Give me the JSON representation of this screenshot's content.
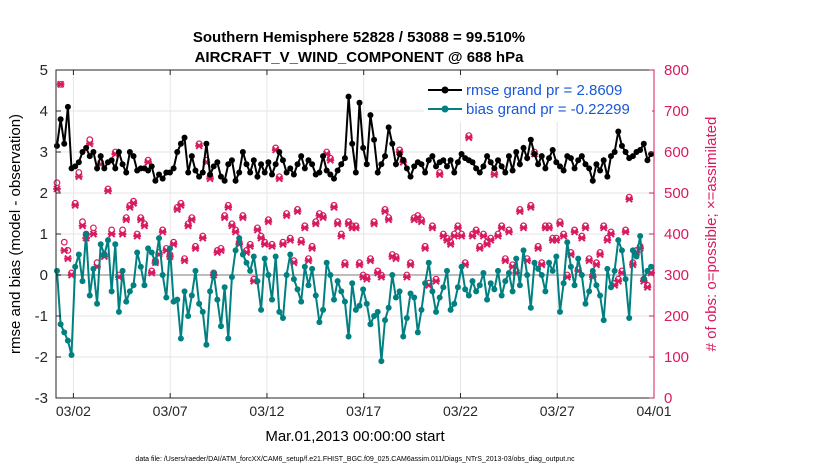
{
  "chart_data": {
    "type": "line",
    "title": "Southern Hemisphere 52828 / 53088 = 99.510%",
    "subtitle": "AIRCRAFT_V_WIND_COMPONENT @ 688 hPa",
    "xlabel": "Mar.01,2013 00:00:00 start",
    "ylabel": "rmse and bias (model - observation)",
    "y2label": "# of obs: o=possible; ×=assimilated",
    "footer": "data file: /Users/raeder/DAI/ATM_forcXX/CAM6_setup/f.e21.FHIST_BGC.f09_025.CAM6assim.011/Diags_NTrS_2013-03/obs_diag_output.nc",
    "xlim": [
      0,
      31
    ],
    "ylim": [
      -3,
      5
    ],
    "y2lim": [
      0,
      800
    ],
    "x_ticks": [
      {
        "x": 1,
        "label": "03/02"
      },
      {
        "x": 6,
        "label": "03/07"
      },
      {
        "x": 11,
        "label": "03/12"
      },
      {
        "x": 16,
        "label": "03/17"
      },
      {
        "x": 21,
        "label": "03/22"
      },
      {
        "x": 26,
        "label": "03/27"
      },
      {
        "x": 31,
        "label": "04/01"
      }
    ],
    "y_ticks": [
      "-3",
      "-2",
      "-1",
      "0",
      "1",
      "2",
      "3",
      "4",
      "5"
    ],
    "y2_ticks": [
      "0",
      "100",
      "200",
      "300",
      "400",
      "500",
      "600",
      "700",
      "800"
    ],
    "colors": {
      "rmse": "#000000",
      "bias": "#008080",
      "obs": "#d81b60",
      "zero": "#bdbdbd"
    },
    "series": [
      {
        "name": "rmse grand pr = 2.8609",
        "key": "rmse",
        "values": [
          3.15,
          3.8,
          3.2,
          4.1,
          2.6,
          2.65,
          2.75,
          3.0,
          3.1,
          2.9,
          3.0,
          2.6,
          2.9,
          2.6,
          2.75,
          2.8,
          2.6,
          3.0,
          2.7,
          2.5,
          3.0,
          2.9,
          2.55,
          2.6,
          2.6,
          2.55,
          2.65,
          2.3,
          2.45,
          2.35,
          2.5,
          2.5,
          2.6,
          3.0,
          3.2,
          3.35,
          2.5,
          2.9,
          2.55,
          2.4,
          2.5,
          3.2,
          2.45,
          2.65,
          2.75,
          2.4,
          2.3,
          2.7,
          2.8,
          2.3,
          2.5,
          3.0,
          2.7,
          2.5,
          2.8,
          2.4,
          2.7,
          2.5,
          2.75,
          2.45,
          2.7,
          3.0,
          2.8,
          2.5,
          2.6,
          2.45,
          2.7,
          2.9,
          2.6,
          2.8,
          2.7,
          2.45,
          2.5,
          2.9,
          2.55,
          2.45,
          2.35,
          2.55,
          2.7,
          2.85,
          4.35,
          3.2,
          2.5,
          4.2,
          3.1,
          2.7,
          3.9,
          3.3,
          2.5,
          2.7,
          2.9,
          3.6,
          3.2,
          2.7,
          2.95,
          2.8,
          2.6,
          2.4,
          2.65,
          2.75,
          2.7,
          2.5,
          2.8,
          2.9,
          2.65,
          2.75,
          2.8,
          2.65,
          2.8,
          2.5,
          2.75,
          2.95,
          2.85,
          2.8,
          2.75,
          2.6,
          2.5,
          2.65,
          2.9,
          2.75,
          2.6,
          2.8,
          2.65,
          2.5,
          2.9,
          2.55,
          3.0,
          2.7,
          3.1,
          2.85,
          3.3,
          2.95,
          2.7,
          2.9,
          2.6,
          2.85,
          3.05,
          2.75,
          2.65,
          2.55,
          2.9,
          2.85,
          2.6,
          2.8,
          2.9,
          2.7,
          2.6,
          2.3,
          2.7,
          2.55,
          2.8,
          2.4,
          2.9,
          3.0,
          3.5,
          3.15,
          3.0,
          2.85,
          2.9,
          3.0,
          3.05,
          3.2,
          2.8,
          2.95
        ]
      },
      {
        "name": "bias grand pr = -0.22299",
        "key": "bias",
        "values": [
          0.1,
          -1.2,
          -1.4,
          -1.6,
          -1.95,
          0.2,
          0.5,
          -0.15,
          1.0,
          -0.5,
          0.15,
          -0.7,
          0.75,
          0.5,
          0.85,
          -0.4,
          0.75,
          -0.9,
          0.1,
          -0.65,
          -0.4,
          -0.25,
          0.55,
          0.2,
          -0.25,
          0.65,
          0.55,
          0.3,
          0.9,
          0.0,
          -0.55,
          0.65,
          -0.65,
          -0.6,
          -1.55,
          -0.4,
          -1.0,
          -0.5,
          0.1,
          -0.7,
          -0.9,
          -1.7,
          -0.4,
          0.05,
          -0.6,
          -1.25,
          -0.3,
          -1.55,
          -0.05,
          0.6,
          0.9,
          0.5,
          0.3,
          0.1,
          0.45,
          -0.15,
          -0.85,
          0.4,
          0.0,
          -0.6,
          0.45,
          -0.9,
          -1.05,
          0.0,
          0.5,
          -0.1,
          -0.35,
          -0.65,
          0.2,
          -0.25,
          0.15,
          -0.5,
          -1.15,
          -0.85,
          0.3,
          0.0,
          -0.6,
          -0.15,
          -0.4,
          -0.65,
          -1.5,
          -0.2,
          -0.85,
          -0.75,
          -0.35,
          -0.7,
          -1.2,
          -1.0,
          -0.9,
          -2.1,
          -1.1,
          -0.8,
          0.0,
          -0.55,
          -0.4,
          -1.5,
          -1.05,
          -0.45,
          -0.55,
          -1.4,
          -0.85,
          -0.2,
          0.3,
          -0.4,
          -0.9,
          -0.55,
          -0.3,
          0.1,
          -0.85,
          -0.7,
          -0.3,
          0.2,
          -0.35,
          -0.5,
          -0.15,
          -0.4,
          -0.25,
          0.05,
          -0.6,
          -0.2,
          -0.35,
          0.1,
          -0.5,
          -0.15,
          0.05,
          -0.4,
          0.4,
          -0.25,
          0.6,
          0.0,
          -0.8,
          0.3,
          0.15,
          0.0,
          -0.4,
          0.3,
          0.1,
          0.45,
          -0.9,
          -0.2,
          0.8,
          0.2,
          -0.25,
          0.4,
          0.0,
          -0.7,
          -0.4,
          0.1,
          -0.25,
          -0.5,
          -1.1,
          0.15,
          -0.3,
          0.1,
          0.85,
          0.6,
          -0.1,
          -1.05,
          0.6,
          0.45,
          0.95,
          -0.1,
          0.1,
          0.2
        ]
      },
      {
        "name": "obs possible",
        "key": "obs_possible",
        "values": [
          525,
          765,
          380,
          360,
          305,
          475,
          550,
          430,
          400,
          630,
          415,
          330,
          575,
          350,
          510,
          410,
          600,
          300,
          410,
          440,
          470,
          480,
          400,
          440,
          425,
          580,
          310,
          335,
          355,
          410,
          365,
          350,
          380,
          465,
          475,
          340,
          425,
          440,
          370,
          620,
          395,
          580,
          540,
          305,
          360,
          365,
          445,
          470,
          425,
          410,
          380,
          445,
          360,
          375,
          290,
          415,
          395,
          380,
          435,
          375,
          610,
          540,
          380,
          450,
          390,
          335,
          460,
          385,
          420,
          340,
          370,
          430,
          450,
          445,
          600,
          585,
          470,
          430,
          400,
          330,
          430,
          420,
          420,
          330,
          300,
          295,
          340,
          430,
          310,
          300,
          460,
          440,
          350,
          345,
          605,
          580,
          300,
          330,
          440,
          445,
          435,
          370,
          280,
          420,
          290,
          550,
          400,
          390,
          380,
          400,
          420,
          400,
          330,
          640,
          400,
          410,
          370,
          400,
          380,
          390,
          550,
          400,
          420,
          340,
          410,
          325,
          310,
          460,
          420,
          340,
          470,
          600,
          370,
          330,
          420,
          420,
          390,
          390,
          430,
          400,
          300,
          355,
          410,
          315,
          395,
          420,
          340,
          300,
          330,
          355,
          420,
          390,
          405,
          280,
          290,
          310,
          410,
          490,
          330,
          360,
          370,
          290,
          275,
          310
        ]
      },
      {
        "name": "obs assimilated",
        "key": "obs_assimilated",
        "values": [
          510,
          765,
          360,
          340,
          300,
          470,
          540,
          420,
          390,
          620,
          400,
          320,
          570,
          345,
          505,
          400,
          595,
          295,
          400,
          435,
          465,
          475,
          395,
          435,
          420,
          575,
          305,
          330,
          350,
          405,
          360,
          345,
          375,
          460,
          470,
          335,
          420,
          435,
          365,
          615,
          390,
          575,
          535,
          300,
          355,
          360,
          440,
          465,
          420,
          405,
          375,
          440,
          355,
          370,
          285,
          410,
          390,
          375,
          430,
          370,
          605,
          535,
          375,
          445,
          385,
          330,
          455,
          380,
          415,
          335,
          365,
          425,
          445,
          440,
          595,
          580,
          465,
          425,
          395,
          325,
          425,
          415,
          415,
          325,
          295,
          290,
          335,
          425,
          305,
          295,
          455,
          435,
          345,
          340,
          600,
          575,
          295,
          325,
          435,
          440,
          430,
          365,
          275,
          415,
          285,
          545,
          395,
          385,
          375,
          395,
          415,
          395,
          325,
          635,
          395,
          405,
          365,
          395,
          375,
          385,
          545,
          395,
          415,
          335,
          405,
          320,
          305,
          455,
          415,
          335,
          465,
          595,
          365,
          325,
          415,
          415,
          385,
          385,
          425,
          395,
          295,
          350,
          405,
          310,
          390,
          415,
          335,
          295,
          325,
          350,
          415,
          385,
          400,
          275,
          285,
          305,
          405,
          485,
          325,
          355,
          365,
          285,
          270,
          305
        ]
      }
    ]
  }
}
